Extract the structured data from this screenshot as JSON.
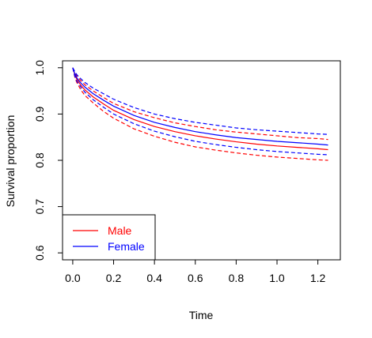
{
  "chart_data": {
    "type": "line",
    "title": "",
    "xlabel": "Time",
    "ylabel": "Survival proportion",
    "xlim": [
      -0.05,
      1.31
    ],
    "ylim": [
      0.585,
      1.015
    ],
    "xticks": [
      "0.0",
      "0.2",
      "0.4",
      "0.6",
      "0.8",
      "1.0",
      "1.2"
    ],
    "yticks": [
      "0.6",
      "0.7",
      "0.8",
      "0.9",
      "1.0"
    ],
    "grid": false,
    "legend_position": "bottom-left",
    "series": [
      {
        "name": "Male",
        "color": "#ff0000",
        "x": [
          0.0,
          0.01,
          0.02,
          0.04,
          0.06,
          0.1,
          0.15,
          0.2,
          0.3,
          0.4,
          0.5,
          0.6,
          0.7,
          0.8,
          0.9,
          1.0,
          1.1,
          1.2,
          1.25
        ],
        "estimate": [
          1.0,
          0.985,
          0.975,
          0.962,
          0.952,
          0.937,
          0.922,
          0.908,
          0.888,
          0.873,
          0.862,
          0.853,
          0.846,
          0.84,
          0.835,
          0.831,
          0.828,
          0.825,
          0.823
        ],
        "lower": [
          1.0,
          0.98,
          0.968,
          0.952,
          0.94,
          0.924,
          0.906,
          0.891,
          0.868,
          0.852,
          0.839,
          0.829,
          0.822,
          0.816,
          0.811,
          0.807,
          0.804,
          0.801,
          0.8
        ],
        "upper": [
          1.0,
          0.99,
          0.982,
          0.972,
          0.963,
          0.95,
          0.936,
          0.923,
          0.905,
          0.892,
          0.881,
          0.873,
          0.866,
          0.861,
          0.857,
          0.853,
          0.849,
          0.847,
          0.845
        ]
      },
      {
        "name": "Female",
        "color": "#0000ff",
        "x": [
          0.0,
          0.01,
          0.02,
          0.04,
          0.06,
          0.1,
          0.15,
          0.2,
          0.3,
          0.4,
          0.5,
          0.6,
          0.7,
          0.8,
          0.9,
          1.0,
          1.1,
          1.2,
          1.25
        ],
        "estimate": [
          1.0,
          0.987,
          0.978,
          0.967,
          0.958,
          0.944,
          0.93,
          0.917,
          0.897,
          0.882,
          0.871,
          0.862,
          0.855,
          0.849,
          0.845,
          0.841,
          0.838,
          0.835,
          0.833
        ],
        "lower": [
          1.0,
          0.982,
          0.971,
          0.958,
          0.947,
          0.931,
          0.915,
          0.9,
          0.879,
          0.863,
          0.851,
          0.841,
          0.834,
          0.828,
          0.823,
          0.819,
          0.816,
          0.813,
          0.812
        ],
        "upper": [
          1.0,
          0.992,
          0.985,
          0.976,
          0.968,
          0.956,
          0.944,
          0.932,
          0.914,
          0.9,
          0.89,
          0.882,
          0.876,
          0.87,
          0.866,
          0.863,
          0.86,
          0.857,
          0.856
        ]
      }
    ]
  }
}
